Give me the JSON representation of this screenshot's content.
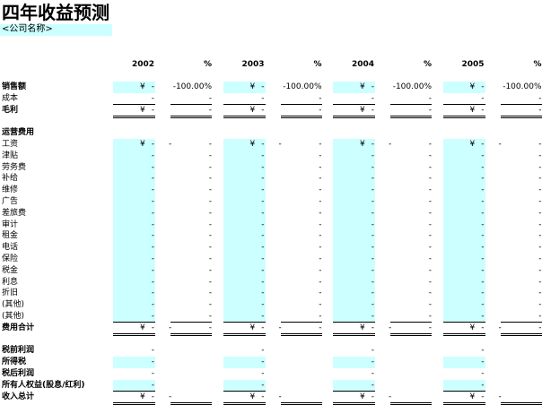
{
  "header": {
    "title": "四年收益预测",
    "company": "<公司名称>"
  },
  "columns": [
    {
      "year": "2002",
      "pct": "%"
    },
    {
      "year": "2003",
      "pct": "%"
    },
    {
      "year": "2004",
      "pct": "%"
    },
    {
      "year": "2005",
      "pct": "%"
    }
  ],
  "rows": [
    {
      "label": "销售额",
      "bold": true,
      "input": true,
      "cells": [
        [
          "¥",
          "-",
          null,
          "-100.00%"
        ],
        [
          "¥",
          "-",
          null,
          "-100.00%"
        ],
        [
          "¥",
          "-",
          null,
          "-100.00%"
        ],
        [
          "¥",
          "-",
          null,
          "-100.00%"
        ]
      ]
    },
    {
      "label": "成本",
      "bold": false,
      "input": false,
      "line": "single",
      "cells": [
        [
          null,
          "-",
          null,
          "-"
        ],
        [
          null,
          "-",
          null,
          "-"
        ],
        [
          null,
          "-",
          null,
          "-"
        ],
        [
          null,
          "-",
          null,
          "-"
        ]
      ]
    },
    {
      "label": "毛利",
      "bold": true,
      "input": false,
      "line": "double",
      "cells": [
        [
          "¥",
          "-",
          null,
          "-"
        ],
        [
          "¥",
          "-",
          null,
          "-"
        ],
        [
          "¥",
          "-",
          null,
          "-"
        ],
        [
          "¥",
          "-",
          null,
          "-"
        ]
      ]
    },
    {
      "label": "运营费用",
      "bold": true,
      "input": false,
      "gap": true,
      "cells": []
    },
    {
      "label": "工资",
      "bold": false,
      "input": true,
      "cells": [
        [
          "¥",
          "-",
          "-",
          "-"
        ],
        [
          "¥",
          "-",
          "-",
          "-"
        ],
        [
          "¥",
          "-",
          "-",
          "-"
        ],
        [
          "¥",
          "-",
          "-",
          "-"
        ]
      ]
    },
    {
      "label": "津贴",
      "bold": false,
      "input": true,
      "cells": [
        [
          null,
          "-",
          null,
          "-"
        ],
        [
          null,
          "-",
          null,
          "-"
        ],
        [
          null,
          "-",
          null,
          "-"
        ],
        [
          null,
          "-",
          null,
          "-"
        ]
      ]
    },
    {
      "label": "劳务费",
      "bold": false,
      "input": true,
      "cells": [
        [
          null,
          "-",
          null,
          "-"
        ],
        [
          null,
          "-",
          null,
          "-"
        ],
        [
          null,
          "-",
          null,
          "-"
        ],
        [
          null,
          "-",
          null,
          "-"
        ]
      ]
    },
    {
      "label": "补给",
      "bold": false,
      "input": true,
      "cells": [
        [
          null,
          "-",
          null,
          "-"
        ],
        [
          null,
          "-",
          null,
          "-"
        ],
        [
          null,
          "-",
          null,
          "-"
        ],
        [
          null,
          "-",
          null,
          "-"
        ]
      ]
    },
    {
      "label": "维修",
      "bold": false,
      "input": true,
      "cells": [
        [
          null,
          "-",
          null,
          "-"
        ],
        [
          null,
          "-",
          null,
          "-"
        ],
        [
          null,
          "-",
          null,
          "-"
        ],
        [
          null,
          "-",
          null,
          "-"
        ]
      ]
    },
    {
      "label": "广告",
      "bold": false,
      "input": true,
      "cells": [
        [
          null,
          "-",
          null,
          "-"
        ],
        [
          null,
          "-",
          null,
          "-"
        ],
        [
          null,
          "-",
          null,
          "-"
        ],
        [
          null,
          "-",
          null,
          "-"
        ]
      ]
    },
    {
      "label": "差旅费",
      "bold": false,
      "input": true,
      "cells": [
        [
          null,
          "-",
          null,
          "-"
        ],
        [
          null,
          "-",
          null,
          "-"
        ],
        [
          null,
          "-",
          null,
          "-"
        ],
        [
          null,
          "-",
          null,
          "-"
        ]
      ]
    },
    {
      "label": "审计",
      "bold": false,
      "input": true,
      "cells": [
        [
          null,
          "-",
          null,
          "-"
        ],
        [
          null,
          "-",
          null,
          "-"
        ],
        [
          null,
          "-",
          null,
          "-"
        ],
        [
          null,
          "-",
          null,
          "-"
        ]
      ]
    },
    {
      "label": "租金",
      "bold": false,
      "input": true,
      "cells": [
        [
          null,
          "-",
          null,
          "-"
        ],
        [
          null,
          "-",
          null,
          "-"
        ],
        [
          null,
          "-",
          null,
          "-"
        ],
        [
          null,
          "-",
          null,
          "-"
        ]
      ]
    },
    {
      "label": "电话",
      "bold": false,
      "input": true,
      "cells": [
        [
          null,
          "-",
          null,
          "-"
        ],
        [
          null,
          "-",
          null,
          "-"
        ],
        [
          null,
          "-",
          null,
          "-"
        ],
        [
          null,
          "-",
          null,
          "-"
        ]
      ]
    },
    {
      "label": "保险",
      "bold": false,
      "input": true,
      "cells": [
        [
          null,
          "-",
          null,
          "-"
        ],
        [
          null,
          "-",
          null,
          "-"
        ],
        [
          null,
          "-",
          null,
          "-"
        ],
        [
          null,
          "-",
          null,
          "-"
        ]
      ]
    },
    {
      "label": "税金",
      "bold": false,
      "input": true,
      "cells": [
        [
          null,
          "-",
          null,
          "-"
        ],
        [
          null,
          "-",
          null,
          "-"
        ],
        [
          null,
          "-",
          null,
          "-"
        ],
        [
          null,
          "-",
          null,
          "-"
        ]
      ]
    },
    {
      "label": "利息",
      "bold": false,
      "input": true,
      "cells": [
        [
          null,
          "-",
          null,
          "-"
        ],
        [
          null,
          "-",
          null,
          "-"
        ],
        [
          null,
          "-",
          null,
          "-"
        ],
        [
          null,
          "-",
          null,
          "-"
        ]
      ]
    },
    {
      "label": "折旧",
      "bold": false,
      "input": true,
      "cells": [
        [
          null,
          "-",
          null,
          "-"
        ],
        [
          null,
          "-",
          null,
          "-"
        ],
        [
          null,
          "-",
          null,
          "-"
        ],
        [
          null,
          "-",
          null,
          "-"
        ]
      ]
    },
    {
      "label": "(其他)",
      "bold": false,
      "input": true,
      "cells": [
        [
          null,
          "-",
          null,
          "-"
        ],
        [
          null,
          "-",
          null,
          "-"
        ],
        [
          null,
          "-",
          null,
          "-"
        ],
        [
          null,
          "-",
          null,
          "-"
        ]
      ]
    },
    {
      "label": "(其他)",
      "bold": false,
      "input": true,
      "line": "single",
      "cells": [
        [
          null,
          "-",
          null,
          "-"
        ],
        [
          null,
          "-",
          null,
          "-"
        ],
        [
          null,
          "-",
          null,
          "-"
        ],
        [
          null,
          "-",
          null,
          "-"
        ]
      ]
    },
    {
      "label": "费用合计",
      "bold": true,
      "input": false,
      "line": "double",
      "cells": [
        [
          "¥",
          "-",
          "-",
          "-"
        ],
        [
          "¥",
          "-",
          "-",
          "-"
        ],
        [
          "¥",
          "-",
          "-",
          "-"
        ],
        [
          "¥",
          "-",
          "-",
          "-"
        ]
      ]
    },
    {
      "label": "税前利润",
      "bold": true,
      "input": false,
      "gap": true,
      "cells": [
        [
          null,
          "-",
          null,
          null
        ],
        [
          null,
          "-",
          null,
          null
        ],
        [
          null,
          "-",
          null,
          null
        ],
        [
          null,
          "-",
          null,
          null
        ]
      ]
    },
    {
      "label": "所得税",
      "bold": true,
      "input": true,
      "cells": [
        [
          null,
          "-",
          null,
          null
        ],
        [
          null,
          "-",
          null,
          null
        ],
        [
          null,
          "-",
          null,
          null
        ],
        [
          null,
          "-",
          null,
          null
        ]
      ]
    },
    {
      "label": "税后利润",
      "bold": true,
      "input": false,
      "cells": [
        [
          null,
          "-",
          null,
          null
        ],
        [
          null,
          "-",
          null,
          null
        ],
        [
          null,
          "-",
          null,
          null
        ],
        [
          null,
          "-",
          null,
          null
        ]
      ]
    },
    {
      "label": "所有人权益(股息/红利)",
      "bold": true,
      "input": true,
      "line": "single",
      "cells": [
        [
          null,
          "-",
          null,
          null
        ],
        [
          null,
          "-",
          null,
          null
        ],
        [
          null,
          "-",
          null,
          null
        ],
        [
          null,
          "-",
          null,
          null
        ]
      ]
    },
    {
      "label": "收入总计",
      "bold": true,
      "input": false,
      "line": "double",
      "cells": [
        [
          "¥",
          "-",
          "-",
          null
        ],
        [
          "¥",
          "-",
          "-",
          null
        ],
        [
          "¥",
          "-",
          "-",
          null
        ],
        [
          "¥",
          "-",
          "-",
          null
        ]
      ]
    }
  ]
}
